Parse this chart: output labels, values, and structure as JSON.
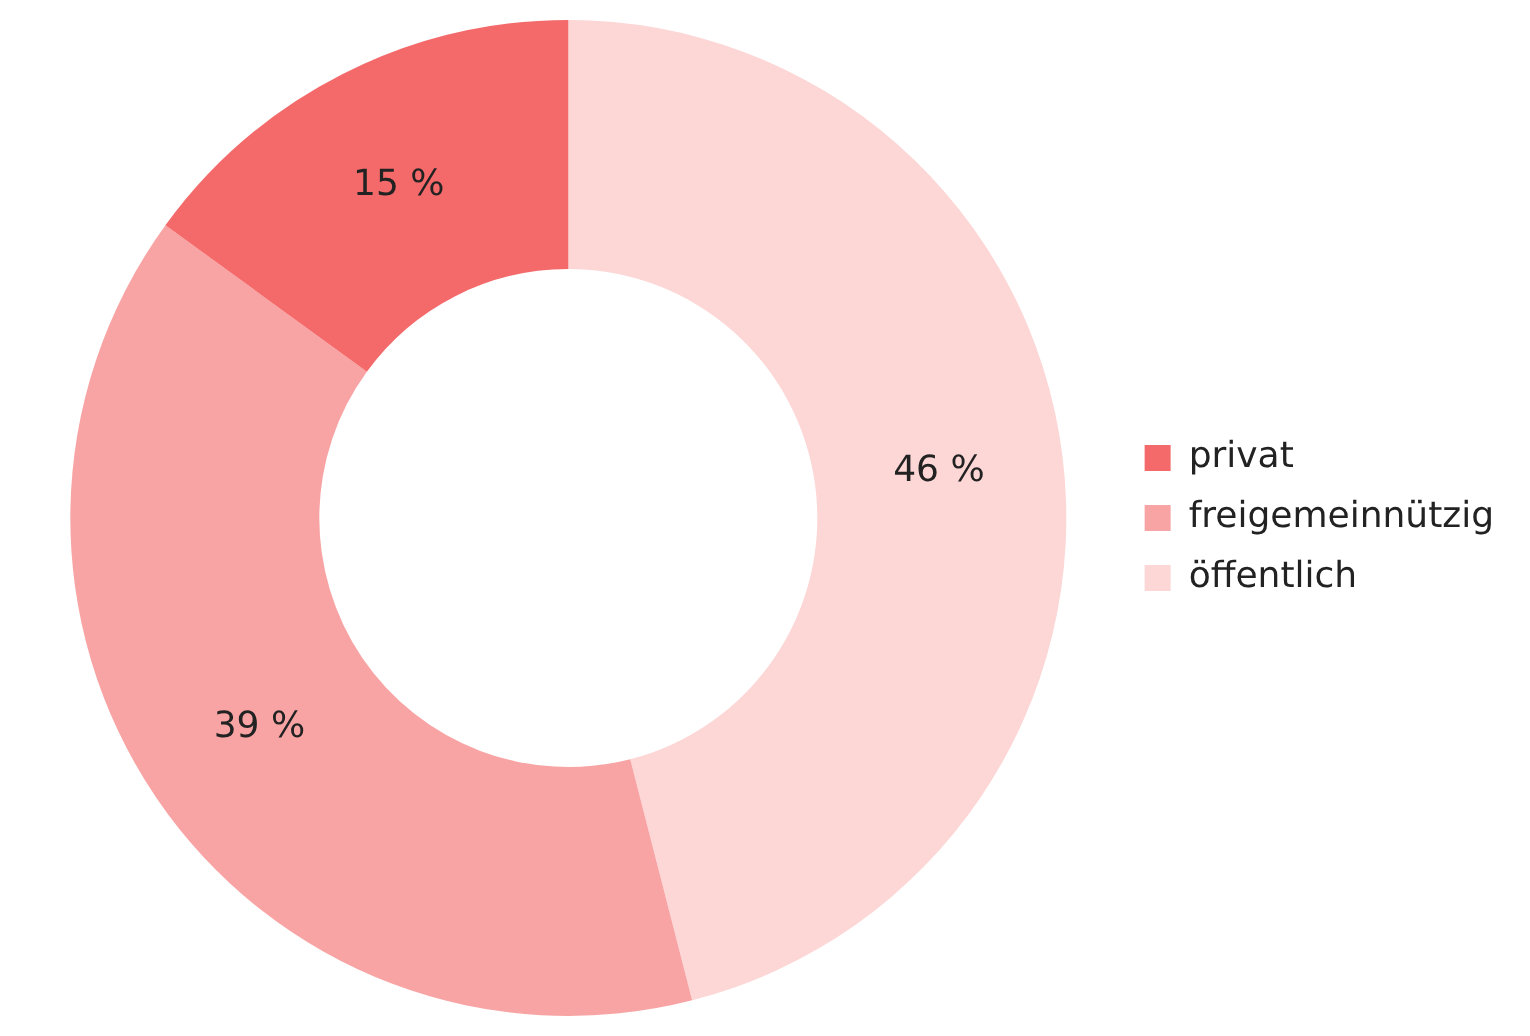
{
  "chart_data": {
    "type": "donut",
    "categories": [
      "privat",
      "freigemeinnützig",
      "öffentlich"
    ],
    "values": [
      15,
      39,
      46
    ],
    "colors": [
      "#f46a6a",
      "#f9a4a4",
      "#fdd6d6"
    ],
    "value_labels": [
      "15 %",
      "39 %",
      "46 %"
    ],
    "legend": "right"
  }
}
